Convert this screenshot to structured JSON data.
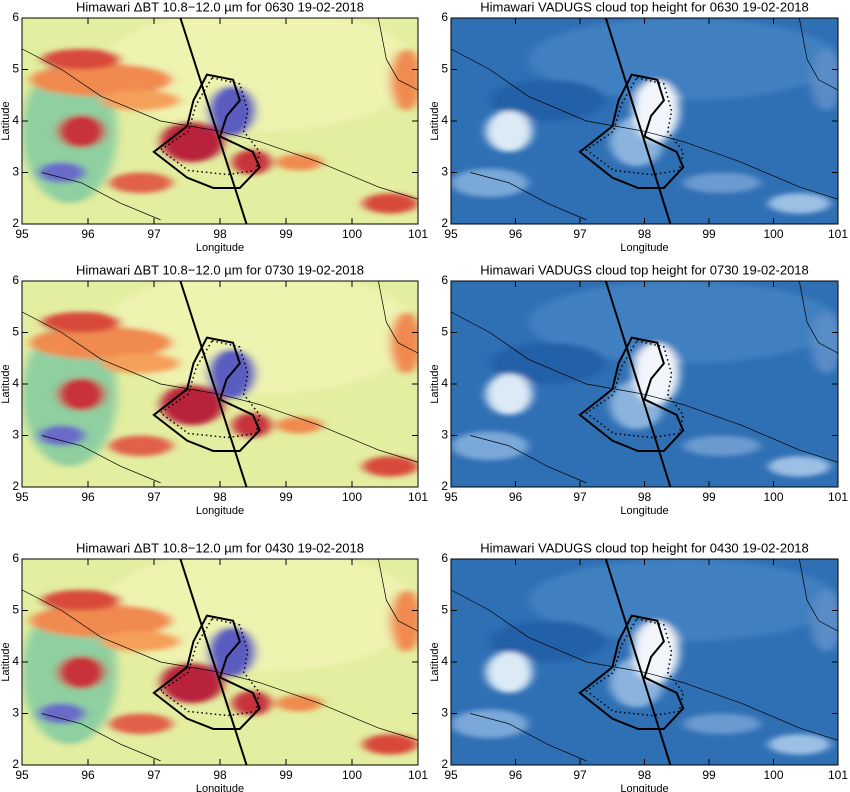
{
  "panels": [
    {
      "title": "Himawari ΔBT 10.8−12.0 µm for 0630 19-02-2018",
      "xlabel": "Longitude",
      "ylabel": "Latitude",
      "xlim": [
        95,
        101
      ],
      "ylim": [
        2,
        6
      ],
      "xticks": [
        95,
        96,
        97,
        98,
        99,
        100,
        101
      ],
      "yticks": [
        2,
        3,
        4,
        5,
        6
      ]
    },
    {
      "title": "Himawari VADUGS cloud top height for 0630 19-02-2018",
      "xlabel": "Longitude",
      "ylabel": "Latitude",
      "xlim": [
        95,
        101
      ],
      "ylim": [
        2,
        6
      ],
      "xticks": [
        95,
        96,
        97,
        98,
        99,
        100,
        101
      ],
      "yticks": [
        2,
        3,
        4,
        5,
        6
      ]
    },
    {
      "title": "Himawari ΔBT 10.8−12.0 µm for 0730 19-02-2018",
      "xlabel": "Longitude",
      "ylabel": "Latitude",
      "xlim": [
        95,
        101
      ],
      "ylim": [
        2,
        6
      ],
      "xticks": [
        95,
        96,
        97,
        98,
        99,
        100,
        101
      ],
      "yticks": [
        2,
        3,
        4,
        5,
        6
      ]
    },
    {
      "title": "Himawari VADUGS cloud top height for 0730 19-02-2018",
      "xlabel": "Longitude",
      "ylabel": "Latitude",
      "xlim": [
        95,
        101
      ],
      "ylim": [
        2,
        6
      ],
      "xticks": [
        95,
        96,
        97,
        98,
        99,
        100,
        101
      ],
      "yticks": [
        2,
        3,
        4,
        5,
        6
      ]
    },
    {
      "title": "Himawari ΔBT 10.8−12.0 µm for 0430 19-02-2018",
      "xlabel": "Longitude",
      "ylabel": "Latitude",
      "xlim": [
        95,
        101
      ],
      "ylim": [
        2,
        6
      ],
      "xticks": [
        95,
        96,
        97,
        98,
        99,
        100,
        101
      ],
      "yticks": [
        2,
        3,
        4,
        5,
        6
      ]
    },
    {
      "title": "Himawari VADUGS cloud top height for 0430 19-02-2018",
      "xlabel": "Longitude",
      "ylabel": "Latitude",
      "xlim": [
        95,
        101
      ],
      "ylim": [
        2,
        6
      ],
      "xticks": [
        95,
        96,
        97,
        98,
        99,
        100,
        101
      ],
      "yticks": [
        2,
        3,
        4,
        5,
        6
      ]
    }
  ]
}
